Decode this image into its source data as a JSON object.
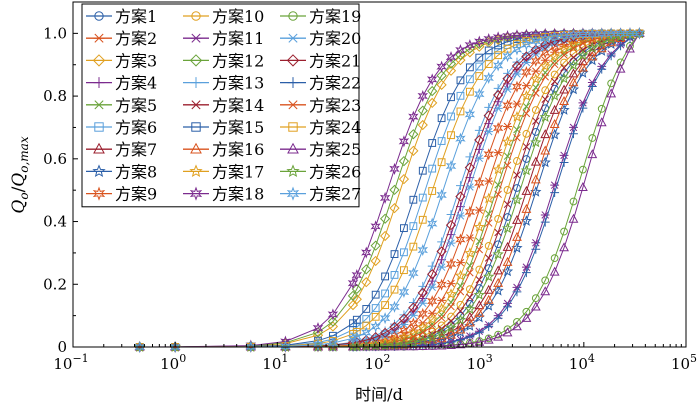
{
  "chart_data": {
    "type": "line",
    "xlabel": "时间/d",
    "ylabel_main": "Q",
    "ylabel_sub": "o",
    "ylabel_sep": "/",
    "ylabel_sub2": "o,max",
    "xscale": "log",
    "xlim": [
      0.1,
      100000
    ],
    "ylim": [
      0,
      1.1
    ],
    "x_ticks": [
      {
        "base": "10",
        "exp": "−1"
      },
      {
        "base": "10",
        "exp": "0"
      },
      {
        "base": "10",
        "exp": "1"
      },
      {
        "base": "10",
        "exp": "2"
      },
      {
        "base": "10",
        "exp": "3"
      },
      {
        "base": "10",
        "exp": "4"
      },
      {
        "base": "10",
        "exp": "5"
      }
    ],
    "y_ticks": [
      "0",
      "0.2",
      "0.4",
      "0.6",
      "0.8",
      "1.0"
    ],
    "legend_position": "top-left",
    "grid": false,
    "series": [
      {
        "name": "方案1",
        "color": "#2b5fa8",
        "marker": "circle",
        "t50": 2200
      },
      {
        "name": "方案2",
        "color": "#d9531e",
        "marker": "asterisk",
        "t50": 1100
      },
      {
        "name": "方案3",
        "color": "#e0a020",
        "marker": "diamond",
        "t50": 160
      },
      {
        "name": "方案4",
        "color": "#7b2b8e",
        "marker": "plus",
        "t50": 700
      },
      {
        "name": "方案5",
        "color": "#6aa33a",
        "marker": "x",
        "t50": 1400
      },
      {
        "name": "方案6",
        "color": "#5aa0dc",
        "marker": "square",
        "t50": 280
      },
      {
        "name": "方案7",
        "color": "#9b1f2e",
        "marker": "triangle",
        "t50": 2800
      },
      {
        "name": "方案8",
        "color": "#2b5fa8",
        "marker": "star",
        "t50": 3500
      },
      {
        "name": "方案9",
        "color": "#d9531e",
        "marker": "hexstar",
        "t50": 900
      },
      {
        "name": "方案10",
        "color": "#e0a020",
        "marker": "circle",
        "t50": 1800
      },
      {
        "name": "方案11",
        "color": "#7b2b8e",
        "marker": "asterisk",
        "t50": 5200
      },
      {
        "name": "方案12",
        "color": "#6aa33a",
        "marker": "diamond",
        "t50": 140
      },
      {
        "name": "方案13",
        "color": "#5aa0dc",
        "marker": "plus",
        "t50": 600
      },
      {
        "name": "方案14",
        "color": "#9b1f2e",
        "marker": "x",
        "t50": 2000
      },
      {
        "name": "方案15",
        "color": "#2b5fa8",
        "marker": "square",
        "t50": 230
      },
      {
        "name": "方案16",
        "color": "#d9531e",
        "marker": "triangle",
        "t50": 3200
      },
      {
        "name": "方案17",
        "color": "#e0a020",
        "marker": "star",
        "t50": 1250
      },
      {
        "name": "方案18",
        "color": "#7b2b8e",
        "marker": "hexstar",
        "t50": 120
      },
      {
        "name": "方案19",
        "color": "#6aa33a",
        "marker": "circle",
        "t50": 9500
      },
      {
        "name": "方案20",
        "color": "#5aa0dc",
        "marker": "asterisk",
        "t50": 750
      },
      {
        "name": "方案21",
        "color": "#9b1f2e",
        "marker": "diamond",
        "t50": 650
      },
      {
        "name": "方案22",
        "color": "#2b5fa8",
        "marker": "plus",
        "t50": 5500
      },
      {
        "name": "方案23",
        "color": "#d9531e",
        "marker": "x",
        "t50": 1500
      },
      {
        "name": "方案24",
        "color": "#e0a020",
        "marker": "square",
        "t50": 330
      },
      {
        "name": "方案25",
        "color": "#7b2b8e",
        "marker": "triangle",
        "t50": 11000
      },
      {
        "name": "方案26",
        "color": "#6aa33a",
        "marker": "star",
        "t50": 2400
      },
      {
        "name": "方案27",
        "color": "#5aa0dc",
        "marker": "hexstar",
        "t50": 420
      }
    ]
  }
}
